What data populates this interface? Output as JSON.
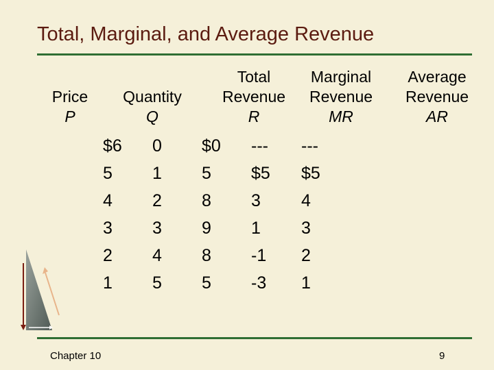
{
  "title": "Total, Marginal, and Average Revenue",
  "colors": {
    "background": "#f5f0d9",
    "title": "#5b1b10",
    "rule": "#2f6e33"
  },
  "headers": [
    {
      "lines": [
        "Price"
      ],
      "symbol": "P"
    },
    {
      "lines": [
        "Quantity"
      ],
      "symbol": "Q"
    },
    {
      "lines": [
        "Total",
        "Revenue"
      ],
      "symbol": "R"
    },
    {
      "lines": [
        "Marginal",
        "Revenue"
      ],
      "symbol": "MR"
    },
    {
      "lines": [
        "Average",
        "Revenue"
      ],
      "symbol": "AR"
    }
  ],
  "columns": {
    "price": [
      "$6",
      "5",
      "4",
      "3",
      "2",
      "1"
    ],
    "quantity": [
      "0",
      "1",
      "2",
      "3",
      "4",
      "5"
    ],
    "total_revenue": [
      "$0",
      "5",
      "8",
      "9",
      "8",
      "5"
    ],
    "marginal_revenue": [
      "---",
      "$5",
      "3",
      "1",
      "-1",
      "-3"
    ],
    "average_revenue": [
      "---",
      "$5",
      "4",
      "3",
      "2",
      "1"
    ]
  },
  "footer": {
    "chapter": "Chapter 10",
    "page_number": "9"
  }
}
